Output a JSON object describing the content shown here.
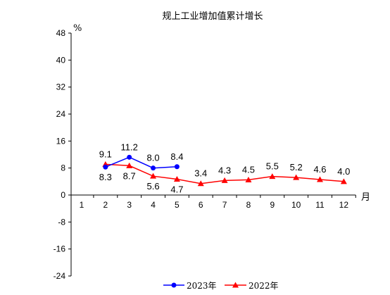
{
  "chart_data": {
    "type": "line",
    "title": "规上工业增加值累计增长",
    "ylabel": "%",
    "xlabel": "月",
    "categories": [
      "1",
      "2",
      "3",
      "4",
      "5",
      "6",
      "7",
      "8",
      "9",
      "10",
      "11",
      "12"
    ],
    "yticks": [
      "48",
      "40",
      "32",
      "24",
      "16",
      "8",
      "0",
      "-8",
      "-16",
      "-24"
    ],
    "ylim": [
      -24,
      48
    ],
    "grid": false,
    "legend": "bottom-center",
    "series": [
      {
        "name": "2023年",
        "color": "#0000FF",
        "marker": "circle",
        "values": [
          null,
          8.3,
          11.2,
          8.0,
          8.4,
          null,
          null,
          null,
          null,
          null,
          null,
          null
        ],
        "data_labels": [
          "",
          "8.3",
          "11.2",
          "8.0",
          "8.4",
          "",
          "",
          "",
          "",
          "",
          "",
          ""
        ],
        "label_positions": [
          "",
          "below",
          "above",
          "above",
          "above",
          "",
          "",
          "",
          "",
          "",
          "",
          ""
        ]
      },
      {
        "name": "2022年",
        "color": "#FF0000",
        "marker": "triangle",
        "values": [
          null,
          9.1,
          8.7,
          5.6,
          4.7,
          3.4,
          4.3,
          4.5,
          5.5,
          5.2,
          4.6,
          4.0
        ],
        "data_labels": [
          "",
          "9.1",
          "8.7",
          "5.6",
          "4.7",
          "3.4",
          "4.3",
          "4.5",
          "5.5",
          "5.2",
          "4.6",
          "4.0"
        ],
        "label_positions": [
          "",
          "above",
          "below",
          "below",
          "below",
          "above",
          "above",
          "above",
          "above",
          "above",
          "above",
          "above"
        ]
      }
    ]
  }
}
